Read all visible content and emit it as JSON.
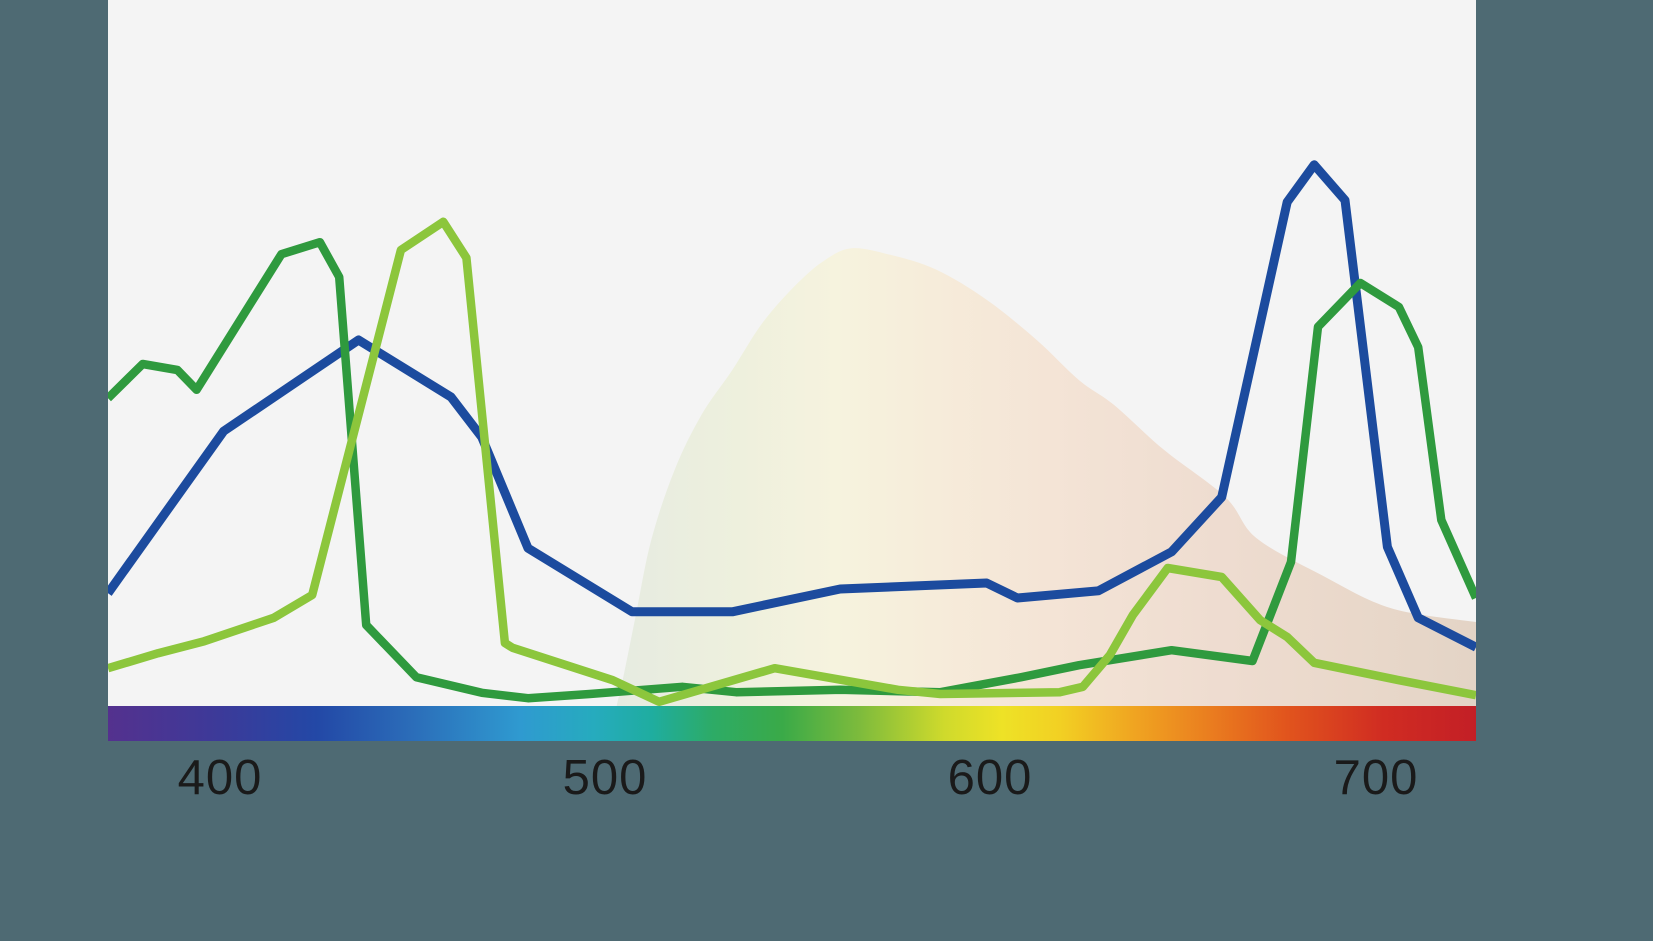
{
  "colors": {
    "canvas_background": "#4e6a73",
    "plot_background": "#f4f4f4",
    "tick_label": "#1a1a1a",
    "series_blue": "#1c4b9e",
    "series_dark_green": "#2f9a3e",
    "series_light_green": "#8cc63c"
  },
  "chart_data": {
    "type": "line",
    "title": "",
    "xlabel": "",
    "ylabel": "",
    "grid": "off",
    "legend": "none",
    "x_axis": {
      "min": 371,
      "max": 726,
      "ticks": [
        {
          "value": 400,
          "label": "400"
        },
        {
          "value": 500,
          "label": "500"
        },
        {
          "value": 600,
          "label": "600"
        },
        {
          "value": 700,
          "label": "700"
        }
      ]
    },
    "y_axis": {
      "min": 0,
      "max": 1,
      "note": "relative intensity, no visible scale"
    },
    "series": [
      {
        "name": "blue",
        "color": "#1c4b9e",
        "stroke_width": 9,
        "points": [
          [
            371,
            0.188
          ],
          [
            401,
            0.458
          ],
          [
            436,
            0.61
          ],
          [
            460,
            0.515
          ],
          [
            468,
            0.448
          ],
          [
            480,
            0.263
          ],
          [
            507,
            0.157
          ],
          [
            533,
            0.157
          ],
          [
            561,
            0.195
          ],
          [
            599,
            0.205
          ],
          [
            607,
            0.18
          ],
          [
            628,
            0.192
          ],
          [
            647,
            0.257
          ],
          [
            660,
            0.348
          ],
          [
            677,
            0.84
          ],
          [
            684,
            0.902
          ],
          [
            692,
            0.843
          ],
          [
            703,
            0.265
          ],
          [
            711,
            0.147
          ],
          [
            726,
            0.098
          ]
        ]
      },
      {
        "name": "dark-green",
        "color": "#2f9a3e",
        "stroke_width": 8.5,
        "points": [
          [
            371,
            0.513
          ],
          [
            380,
            0.57
          ],
          [
            389,
            0.56
          ],
          [
            394,
            0.527
          ],
          [
            416,
            0.753
          ],
          [
            426,
            0.773
          ],
          [
            431,
            0.715
          ],
          [
            438,
            0.135
          ],
          [
            451,
            0.048
          ],
          [
            468,
            0.022
          ],
          [
            480,
            0.013
          ],
          [
            496,
            0.02
          ],
          [
            520,
            0.032
          ],
          [
            534,
            0.023
          ],
          [
            561,
            0.027
          ],
          [
            587,
            0.023
          ],
          [
            608,
            0.048
          ],
          [
            623,
            0.068
          ],
          [
            647,
            0.093
          ],
          [
            668,
            0.075
          ],
          [
            678,
            0.24
          ],
          [
            685,
            0.632
          ],
          [
            696,
            0.705
          ],
          [
            706,
            0.665
          ],
          [
            711,
            0.598
          ],
          [
            717,
            0.31
          ],
          [
            726,
            0.18
          ]
        ]
      },
      {
        "name": "light-green",
        "color": "#8cc63c",
        "stroke_width": 8.5,
        "points": [
          [
            371,
            0.063
          ],
          [
            384,
            0.088
          ],
          [
            396,
            0.108
          ],
          [
            414,
            0.147
          ],
          [
            424,
            0.185
          ],
          [
            447,
            0.76
          ],
          [
            458,
            0.807
          ],
          [
            464,
            0.747
          ],
          [
            474,
            0.105
          ],
          [
            476,
            0.097
          ],
          [
            502,
            0.043
          ],
          [
            514,
            0.007
          ],
          [
            544,
            0.063
          ],
          [
            576,
            0.027
          ],
          [
            587,
            0.02
          ],
          [
            618,
            0.023
          ],
          [
            624,
            0.032
          ],
          [
            631,
            0.085
          ],
          [
            637,
            0.152
          ],
          [
            646,
            0.23
          ],
          [
            660,
            0.215
          ],
          [
            670,
            0.143
          ],
          [
            677,
            0.115
          ],
          [
            684,
            0.072
          ],
          [
            706,
            0.043
          ],
          [
            726,
            0.018
          ]
        ]
      }
    ],
    "background_area": {
      "name": "smooth-hump",
      "points": [
        [
          503,
          0.0
        ],
        [
          505,
          0.057
        ],
        [
          508,
          0.152
        ],
        [
          512,
          0.277
        ],
        [
          518,
          0.393
        ],
        [
          525,
          0.485
        ],
        [
          533,
          0.56
        ],
        [
          541,
          0.64
        ],
        [
          550,
          0.705
        ],
        [
          557,
          0.743
        ],
        [
          564,
          0.763
        ],
        [
          574,
          0.752
        ],
        [
          586,
          0.727
        ],
        [
          599,
          0.677
        ],
        [
          612,
          0.61
        ],
        [
          623,
          0.543
        ],
        [
          632,
          0.502
        ],
        [
          645,
          0.427
        ],
        [
          661,
          0.348
        ],
        [
          669,
          0.28
        ],
        [
          686,
          0.218
        ],
        [
          704,
          0.163
        ],
        [
          726,
          0.14
        ]
      ],
      "gradient": [
        {
          "nm": 503,
          "color": "#e6ebe1"
        },
        {
          "nm": 535,
          "color": "#eef0dd"
        },
        {
          "nm": 560,
          "color": "#f6f3de"
        },
        {
          "nm": 585,
          "color": "#f6ecda"
        },
        {
          "nm": 615,
          "color": "#f4e4d6"
        },
        {
          "nm": 660,
          "color": "#eedcd0"
        },
        {
          "nm": 695,
          "color": "#e9d8ca"
        },
        {
          "nm": 726,
          "color": "#e3d4c6"
        }
      ]
    },
    "spectrum_bar": {
      "stops": [
        {
          "nm": 371,
          "color": "#54318e"
        },
        {
          "nm": 400,
          "color": "#3c3a99"
        },
        {
          "nm": 425,
          "color": "#2348a6"
        },
        {
          "nm": 450,
          "color": "#2b6db9"
        },
        {
          "nm": 478,
          "color": "#2f9ad0"
        },
        {
          "nm": 497,
          "color": "#26abbe"
        },
        {
          "nm": 512,
          "color": "#1fada0"
        },
        {
          "nm": 528,
          "color": "#2dab66"
        },
        {
          "nm": 546,
          "color": "#3aaa48"
        },
        {
          "nm": 566,
          "color": "#7dbb3c"
        },
        {
          "nm": 588,
          "color": "#cfda2c"
        },
        {
          "nm": 603,
          "color": "#eee226"
        },
        {
          "nm": 618,
          "color": "#f2d023"
        },
        {
          "nm": 637,
          "color": "#f0a521"
        },
        {
          "nm": 657,
          "color": "#ea7d1f"
        },
        {
          "nm": 677,
          "color": "#e1541d"
        },
        {
          "nm": 702,
          "color": "#d02c22"
        },
        {
          "nm": 726,
          "color": "#c31f26"
        }
      ]
    }
  }
}
